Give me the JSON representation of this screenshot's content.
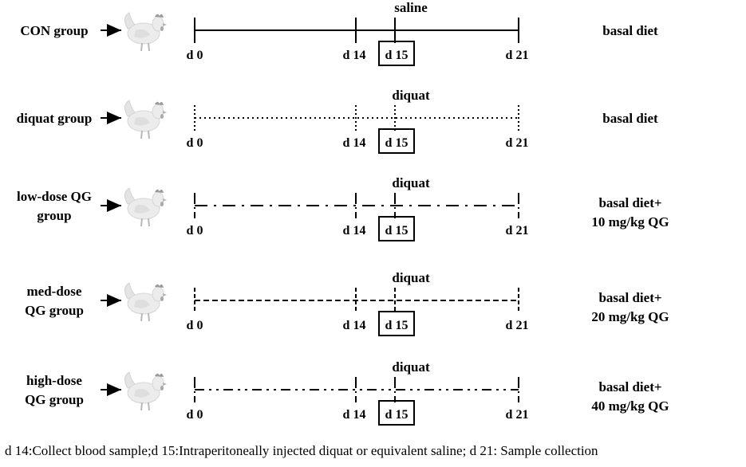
{
  "groups": [
    {
      "name_lines": [
        "CON group"
      ],
      "treatment": "saline",
      "diet_lines": [
        "basal diet"
      ],
      "line_style": "solid"
    },
    {
      "name_lines": [
        "diquat group"
      ],
      "treatment": "diquat",
      "diet_lines": [
        "basal diet"
      ],
      "line_style": "dotted"
    },
    {
      "name_lines": [
        "low-dose QG",
        "group"
      ],
      "treatment": "diquat",
      "diet_lines": [
        "basal diet+",
        "10 mg/kg QG"
      ],
      "line_style": "long-dash-dot"
    },
    {
      "name_lines": [
        "med-dose",
        "QG group"
      ],
      "treatment": "diquat",
      "diet_lines": [
        "basal diet+",
        "20 mg/kg QG"
      ],
      "line_style": "dashed"
    },
    {
      "name_lines": [
        "high-dose",
        "QG group"
      ],
      "treatment": "diquat",
      "diet_lines": [
        "basal diet+",
        "40 mg/kg QG"
      ],
      "line_style": "dash-dot-dot"
    }
  ],
  "days": [
    "d 0",
    "d 14",
    "d 15",
    "d 21"
  ],
  "highlighted_day": "d 15",
  "footer": "d 14:Collect blood sample;d 15:Intraperitoneally injected diquat or equivalent saline; d 21: Sample collection",
  "icon": "chicken-icon"
}
